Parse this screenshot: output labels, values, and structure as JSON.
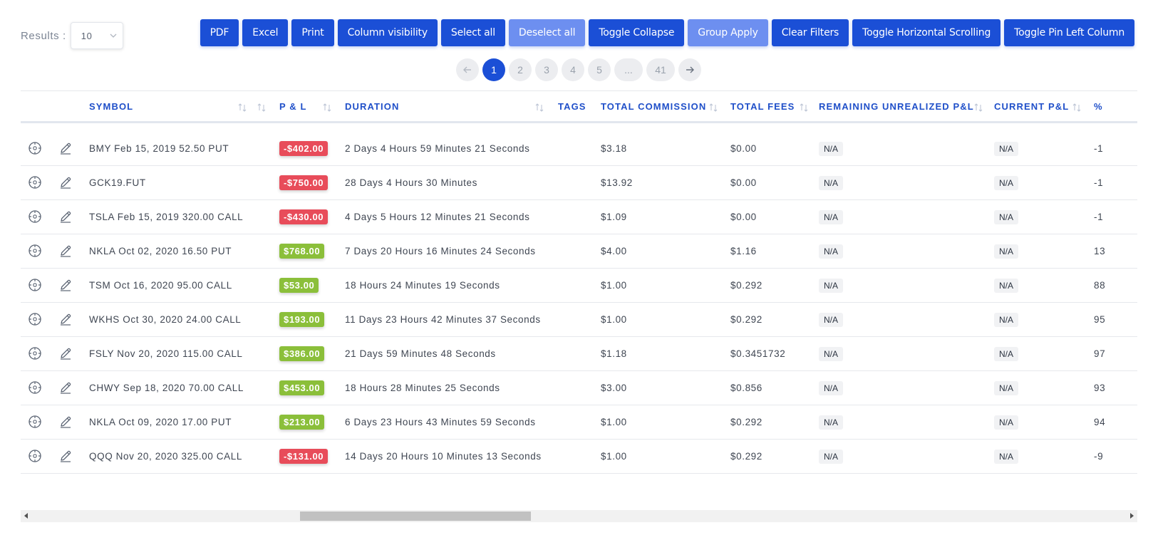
{
  "results": {
    "label": "Results :",
    "value": "10"
  },
  "toolbar": [
    {
      "label": "PDF",
      "muted": false
    },
    {
      "label": "Excel",
      "muted": false
    },
    {
      "label": "Print",
      "muted": false
    },
    {
      "label": "Column visibility",
      "muted": false
    },
    {
      "label": "Select all",
      "muted": false
    },
    {
      "label": "Deselect all",
      "muted": true
    },
    {
      "label": "Toggle Collapse",
      "muted": false
    },
    {
      "label": "Group Apply",
      "muted": true
    },
    {
      "label": "Clear Filters",
      "muted": false
    },
    {
      "label": "Toggle Horizontal Scrolling",
      "muted": false
    },
    {
      "label": "Toggle Pin Left Column",
      "muted": false
    }
  ],
  "pagination": {
    "pages": [
      "1",
      "2",
      "3",
      "4",
      "5",
      "...",
      "41"
    ],
    "active": "1"
  },
  "columns": {
    "symbol": "SYMBOL",
    "pnl": "P & L",
    "duration": "DURATION",
    "tags": "TAGS",
    "commission": "TOTAL COMMISSION",
    "fees": "TOTAL FEES",
    "remaining": "REMAINING UNREALIZED P&L",
    "current": "CURRENT P&L",
    "percent": "%"
  },
  "rows": [
    {
      "symbol": "BMY Feb 15, 2019 52.50 PUT",
      "pnl": "-$402.00",
      "positive": false,
      "duration": "2 Days 4 Hours 59 Minutes 21 Seconds",
      "commission": "$3.18",
      "fees": "$0.00",
      "remaining": "N/A",
      "current": "N/A",
      "percent": "-1"
    },
    {
      "symbol": "GCK19.FUT",
      "pnl": "-$750.00",
      "positive": false,
      "duration": "28 Days 4 Hours 30 Minutes",
      "commission": "$13.92",
      "fees": "$0.00",
      "remaining": "N/A",
      "current": "N/A",
      "percent": "-1"
    },
    {
      "symbol": "TSLA Feb 15, 2019 320.00 CALL",
      "pnl": "-$430.00",
      "positive": false,
      "duration": "4 Days 5 Hours 12 Minutes 21 Seconds",
      "commission": "$1.09",
      "fees": "$0.00",
      "remaining": "N/A",
      "current": "N/A",
      "percent": "-1"
    },
    {
      "symbol": "NKLA Oct 02, 2020 16.50 PUT",
      "pnl": "$768.00",
      "positive": true,
      "duration": "7 Days 20 Hours 16 Minutes 24 Seconds",
      "commission": "$4.00",
      "fees": "$1.16",
      "remaining": "N/A",
      "current": "N/A",
      "percent": "13"
    },
    {
      "symbol": "TSM Oct 16, 2020 95.00 CALL",
      "pnl": "$53.00",
      "positive": true,
      "duration": "18 Hours 24 Minutes 19 Seconds",
      "commission": "$1.00",
      "fees": "$0.292",
      "remaining": "N/A",
      "current": "N/A",
      "percent": "88"
    },
    {
      "symbol": "WKHS Oct 30, 2020 24.00 CALL",
      "pnl": "$193.00",
      "positive": true,
      "duration": "11 Days 23 Hours 42 Minutes 37 Seconds",
      "commission": "$1.00",
      "fees": "$0.292",
      "remaining": "N/A",
      "current": "N/A",
      "percent": "95"
    },
    {
      "symbol": "FSLY Nov 20, 2020 115.00 CALL",
      "pnl": "$386.00",
      "positive": true,
      "duration": "21 Days 59 Minutes 48 Seconds",
      "commission": "$1.18",
      "fees": "$0.3451732",
      "remaining": "N/A",
      "current": "N/A",
      "percent": "97"
    },
    {
      "symbol": "CHWY Sep 18, 2020 70.00 CALL",
      "pnl": "$453.00",
      "positive": true,
      "duration": "18 Hours 28 Minutes 25 Seconds",
      "commission": "$3.00",
      "fees": "$0.856",
      "remaining": "N/A",
      "current": "N/A",
      "percent": "93"
    },
    {
      "symbol": "NKLA Oct 09, 2020 17.00 PUT",
      "pnl": "$213.00",
      "positive": true,
      "duration": "6 Days 23 Hours 43 Minutes 59 Seconds",
      "commission": "$1.00",
      "fees": "$0.292",
      "remaining": "N/A",
      "current": "N/A",
      "percent": "94"
    },
    {
      "symbol": "QQQ Nov 20, 2020 325.00 CALL",
      "pnl": "-$131.00",
      "positive": false,
      "duration": "14 Days 20 Hours 10 Minutes 13 Seconds",
      "commission": "$1.00",
      "fees": "$0.292",
      "remaining": "N/A",
      "current": "N/A",
      "percent": "-9"
    }
  ]
}
